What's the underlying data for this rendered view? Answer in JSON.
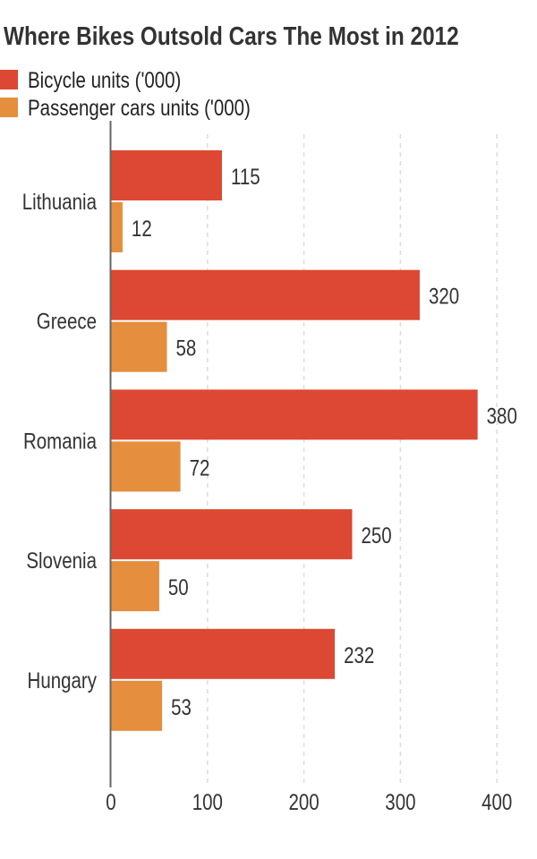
{
  "chart_data": {
    "type": "bar",
    "orientation": "horizontal",
    "title": "Where Bikes Outsold Cars The Most in 2012",
    "categories": [
      "Lithuania",
      "Greece",
      "Romania",
      "Slovenia",
      "Hungary"
    ],
    "series": [
      {
        "name": "Bicycle units ('000)",
        "color": "#dc4833",
        "values": [
          115,
          320,
          380,
          250,
          232
        ]
      },
      {
        "name": "Passenger cars units ('000)",
        "color": "#e58e3e",
        "values": [
          12,
          58,
          72,
          50,
          53
        ]
      }
    ],
    "xlim": [
      0,
      400
    ],
    "xticks": [
      "0",
      "100",
      "200",
      "300",
      "400"
    ],
    "xlabel": "",
    "ylabel": "",
    "grid": "vertical dashed",
    "legend_position": "top-left"
  }
}
